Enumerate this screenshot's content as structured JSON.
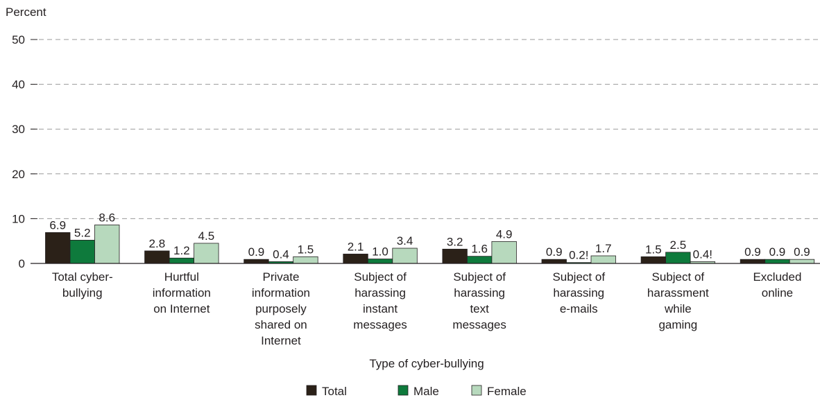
{
  "chart_data": {
    "type": "bar",
    "ylabel": "Percent",
    "xlabel": "Type of cyber-bullying",
    "ylim": [
      0,
      50
    ],
    "yticks": [
      0,
      10,
      20,
      30,
      40,
      50
    ],
    "grid": "horizontal dashed",
    "legend_position": "bottom-center",
    "categories": [
      [
        "Total cyber-",
        "bullying"
      ],
      [
        "Hurtful",
        "information",
        "on Internet"
      ],
      [
        "Private",
        "information",
        "purposely",
        "shared on",
        "Internet"
      ],
      [
        "Subject of",
        "harassing",
        "instant",
        "messages"
      ],
      [
        "Subject of",
        "harassing",
        "text",
        "messages"
      ],
      [
        "Subject of",
        "harassing",
        "e-mails"
      ],
      [
        "Subject of",
        "harassment",
        "while",
        "gaming"
      ],
      [
        "Excluded",
        "online"
      ]
    ],
    "series": [
      {
        "name": "Total",
        "color": "#2b2118",
        "values": [
          6.9,
          2.8,
          0.9,
          2.1,
          3.2,
          0.9,
          1.5,
          0.9
        ],
        "labels": [
          "6.9",
          "2.8",
          "0.9",
          "2.1",
          "3.2",
          "0.9",
          "1.5",
          "0.9"
        ]
      },
      {
        "name": "Male",
        "color": "#0e7a3c",
        "values": [
          5.2,
          1.2,
          0.4,
          1.0,
          1.6,
          0.2,
          2.5,
          0.9
        ],
        "labels": [
          "5.2",
          "1.2",
          "0.4",
          "1.0",
          "1.6",
          "0.2!",
          "2.5",
          "0.9"
        ]
      },
      {
        "name": "Female",
        "color": "#b7d9bd",
        "values": [
          8.6,
          4.5,
          1.5,
          3.4,
          4.9,
          1.7,
          0.4,
          0.9
        ],
        "labels": [
          "8.6",
          "4.5",
          "1.5",
          "3.4",
          "4.9",
          "1.7",
          "0.4!",
          "0.9"
        ]
      }
    ]
  }
}
